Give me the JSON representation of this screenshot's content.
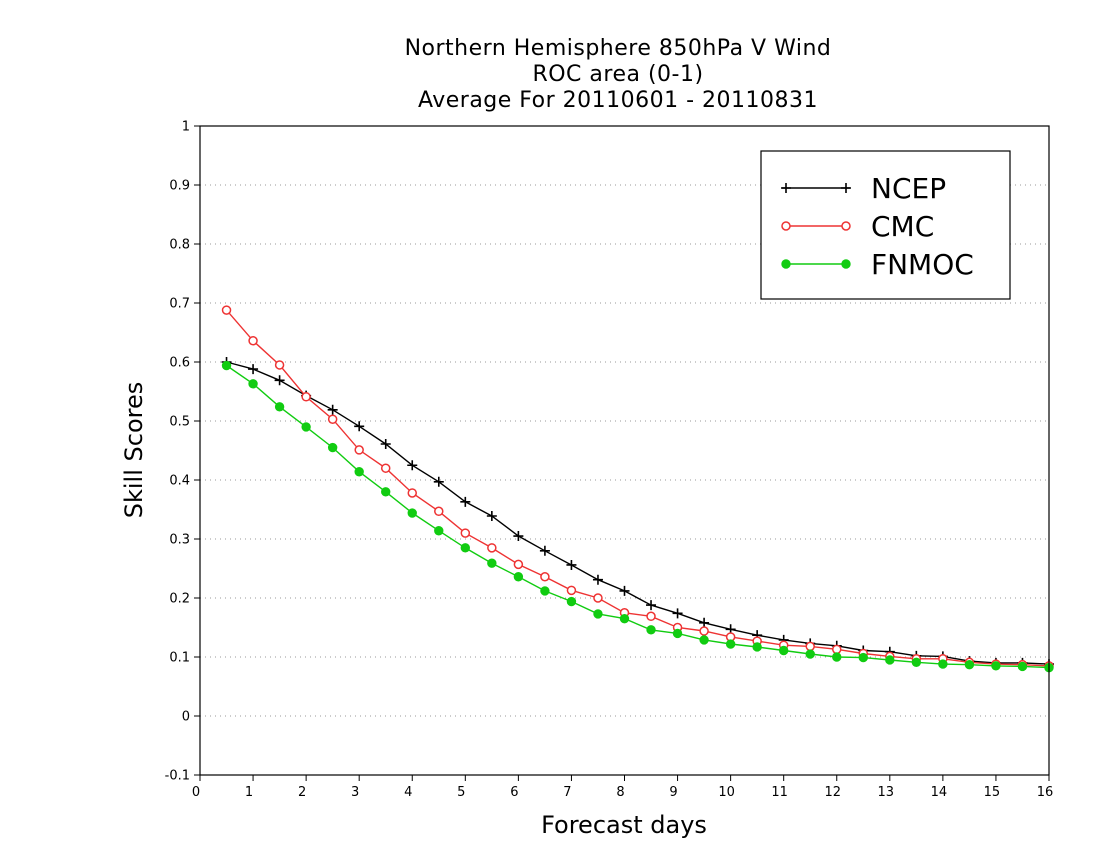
{
  "chart_data": {
    "type": "line",
    "title": [
      "Northern Hemisphere 850hPa V Wind",
      "ROC area (0-1)",
      "Average For 20110601 - 20110831"
    ],
    "xlabel": "Forecast days",
    "ylabel": "Skill Scores",
    "xlim": [
      0,
      16
    ],
    "ylim": [
      -0.1,
      1
    ],
    "xticks": [
      "0",
      "1",
      "2",
      "3",
      "4",
      "5",
      "6",
      "7",
      "8",
      "9",
      "10",
      "11",
      "12",
      "13",
      "14",
      "15",
      "16"
    ],
    "yticks": [
      "-0.1",
      "0",
      "0.1",
      "0.2",
      "0.3",
      "0.4",
      "0.5",
      "0.6",
      "0.7",
      "0.8",
      "0.9",
      "1"
    ],
    "grid": "horizontal dotted",
    "legend_position": "top-right",
    "x": [
      0.5,
      1,
      1.5,
      2,
      2.5,
      3,
      3.5,
      4,
      4.5,
      5,
      5.5,
      6,
      6.5,
      7,
      7.5,
      8,
      8.5,
      9,
      9.5,
      10,
      10.5,
      11,
      11.5,
      12,
      12.5,
      13,
      13.5,
      14,
      14.5,
      15,
      15.5,
      16
    ],
    "series": [
      {
        "name": "NCEP",
        "color": "#000000",
        "marker": "plus",
        "values": [
          0.6,
          0.588,
          0.569,
          0.543,
          0.519,
          0.491,
          0.461,
          0.425,
          0.397,
          0.363,
          0.339,
          0.305,
          0.28,
          0.256,
          0.231,
          0.212,
          0.188,
          0.174,
          0.158,
          0.147,
          0.137,
          0.129,
          0.123,
          0.119,
          0.111,
          0.109,
          0.102,
          0.101,
          0.093,
          0.09,
          0.09,
          0.088
        ]
      },
      {
        "name": "CMC",
        "color": "#ee3333",
        "marker": "open-circle",
        "values": [
          0.688,
          0.636,
          0.595,
          0.541,
          0.503,
          0.451,
          0.42,
          0.378,
          0.347,
          0.31,
          0.285,
          0.257,
          0.236,
          0.213,
          0.2,
          0.175,
          0.169,
          0.15,
          0.144,
          0.134,
          0.127,
          0.12,
          0.118,
          0.113,
          0.106,
          0.101,
          0.097,
          0.097,
          0.091,
          0.088,
          0.087,
          0.085
        ]
      },
      {
        "name": "FNMOC",
        "color": "#11cc11",
        "marker": "filled-circle",
        "values": [
          0.594,
          0.563,
          0.524,
          0.49,
          0.455,
          0.414,
          0.38,
          0.344,
          0.314,
          0.285,
          0.259,
          0.236,
          0.212,
          0.194,
          0.173,
          0.165,
          0.146,
          0.14,
          0.129,
          0.122,
          0.117,
          0.111,
          0.105,
          0.1,
          0.099,
          0.095,
          0.091,
          0.088,
          0.087,
          0.085,
          0.084,
          0.082
        ]
      }
    ]
  }
}
